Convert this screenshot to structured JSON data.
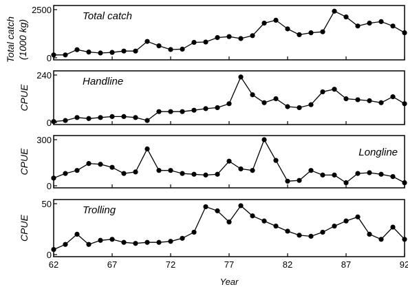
{
  "chart_data": {
    "type": "line",
    "xlabel": "Year",
    "x_ticks": [
      {
        "value": 62,
        "label": "62"
      },
      {
        "value": 67,
        "label": "67"
      },
      {
        "value": 72,
        "label": "72"
      },
      {
        "value": 77,
        "label": "77"
      },
      {
        "value": 82,
        "label": "82"
      },
      {
        "value": 87,
        "label": "87"
      },
      {
        "value": 92,
        "label": "92"
      }
    ],
    "xlim": [
      62,
      92
    ],
    "panels": [
      {
        "title": "Total catch",
        "ylabel": [
          "Total catch",
          "(1000 kg)"
        ],
        "ylim": [
          0,
          2500
        ],
        "y_ticks": [
          {
            "value": 0,
            "label": "0"
          },
          {
            "value": 2500,
            "label": "2500"
          }
        ],
        "title_position": "top-left",
        "x": [
          62,
          63,
          64,
          65,
          66,
          67,
          68,
          69,
          70,
          71,
          72,
          73,
          74,
          75,
          76,
          77,
          78,
          79,
          80,
          81,
          82,
          83,
          84,
          85,
          86,
          87,
          88,
          89,
          90,
          91,
          92
        ],
        "values": [
          150,
          150,
          420,
          300,
          250,
          280,
          350,
          350,
          850,
          620,
          430,
          450,
          800,
          820,
          1050,
          1100,
          1000,
          1150,
          1800,
          1950,
          1500,
          1200,
          1300,
          1350,
          2420,
          2120,
          1650,
          1800,
          1880,
          1650,
          1300
        ]
      },
      {
        "title": "Handline",
        "ylabel": [
          "CPUE"
        ],
        "ylim": [
          0,
          240
        ],
        "y_ticks": [
          {
            "value": 0,
            "label": "0"
          },
          {
            "value": 240,
            "label": "240"
          }
        ],
        "title_position": "top-left",
        "x": [
          62,
          63,
          64,
          65,
          66,
          67,
          68,
          69,
          70,
          71,
          72,
          73,
          74,
          75,
          76,
          77,
          78,
          79,
          80,
          81,
          82,
          83,
          84,
          85,
          86,
          87,
          88,
          89,
          90,
          91,
          92
        ],
        "values": [
          5,
          10,
          25,
          20,
          25,
          30,
          30,
          25,
          10,
          55,
          55,
          55,
          62,
          70,
          75,
          95,
          230,
          140,
          100,
          120,
          80,
          75,
          90,
          155,
          168,
          120,
          115,
          110,
          100,
          130,
          95
        ]
      },
      {
        "title": "Longline",
        "ylabel": [
          "CPUE"
        ],
        "ylim": [
          0,
          300
        ],
        "y_ticks": [
          {
            "value": 0,
            "label": "0"
          },
          {
            "value": 300,
            "label": "300"
          }
        ],
        "title_position": "mid-right",
        "x": [
          62,
          63,
          64,
          65,
          66,
          67,
          68,
          69,
          70,
          71,
          72,
          73,
          74,
          75,
          76,
          77,
          78,
          79,
          80,
          81,
          82,
          83,
          84,
          85,
          86,
          87,
          88,
          89,
          90,
          91,
          92
        ],
        "values": [
          50,
          80,
          100,
          145,
          140,
          120,
          80,
          90,
          240,
          100,
          100,
          80,
          75,
          70,
          75,
          160,
          110,
          100,
          300,
          165,
          30,
          35,
          100,
          70,
          70,
          20,
          80,
          85,
          75,
          60,
          20
        ]
      },
      {
        "title": "Trolling",
        "ylabel": [
          "CPUE"
        ],
        "ylim": [
          0,
          50
        ],
        "y_ticks": [
          {
            "value": 0,
            "label": "0"
          },
          {
            "value": 50,
            "label": "50"
          }
        ],
        "title_position": "top-left",
        "x": [
          62,
          63,
          64,
          65,
          66,
          67,
          68,
          69,
          70,
          71,
          72,
          73,
          74,
          75,
          76,
          77,
          78,
          79,
          80,
          81,
          82,
          83,
          84,
          85,
          86,
          87,
          88,
          89,
          90,
          91,
          92
        ],
        "values": [
          5,
          10,
          20,
          10,
          14,
          15,
          12,
          11,
          12,
          12,
          13,
          16,
          22,
          47,
          43,
          32,
          48,
          38,
          33,
          28,
          23,
          19,
          18,
          22,
          28,
          33,
          37,
          20,
          15,
          27,
          15
        ]
      }
    ]
  }
}
